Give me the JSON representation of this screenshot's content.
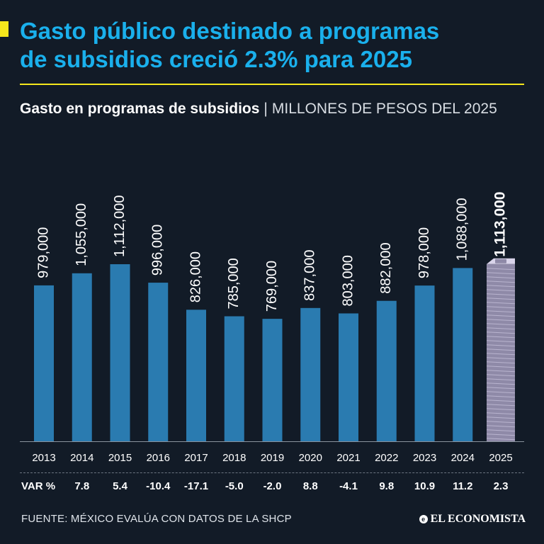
{
  "headline": {
    "line1": "Gasto público destinado a programas",
    "line2": "de subsidios creció 2.3% para 2025"
  },
  "subtitle": {
    "main": "Gasto en programas de subsidios",
    "separator": "|",
    "unit": "MILLONES DE PESOS DEL 2025"
  },
  "colors": {
    "background": "#121b27",
    "headline": "#1ab0ec",
    "accent": "#f5e71c",
    "bar": "#2a7bb0",
    "highlight_bar": "#8f8aa8"
  },
  "chart_data": {
    "type": "bar",
    "categories": [
      "2013",
      "2014",
      "2015",
      "2016",
      "2017",
      "2018",
      "2019",
      "2020",
      "2021",
      "2022",
      "2023",
      "2024",
      "2025"
    ],
    "values": [
      979000,
      1055000,
      1112000,
      996000,
      826000,
      785000,
      769000,
      837000,
      803000,
      882000,
      978000,
      1088000,
      1113000
    ],
    "value_labels": [
      "979,000",
      "1,055,000",
      "1,112,000",
      "996,000",
      "826,000",
      "785,000",
      "769,000",
      "837,000",
      "803,000",
      "882,000",
      "978,000",
      "1,088,000",
      "1,113,000"
    ],
    "highlight_category": "2025",
    "grid": false,
    "legend": "none"
  },
  "variation": {
    "label": "VAR %",
    "values": [
      "7.8",
      "5.4",
      "-10.4",
      "-17.1",
      "-5.0",
      "-2.0",
      "8.8",
      "-4.1",
      "9.8",
      "10.9",
      "11.2",
      "2.3"
    ]
  },
  "source": "FUENTE: MÉXICO EVALÚA CON DATOS DE LA SHCP",
  "brand": {
    "name": "EL ECONOMISTA",
    "icon": "e-logo-icon"
  }
}
